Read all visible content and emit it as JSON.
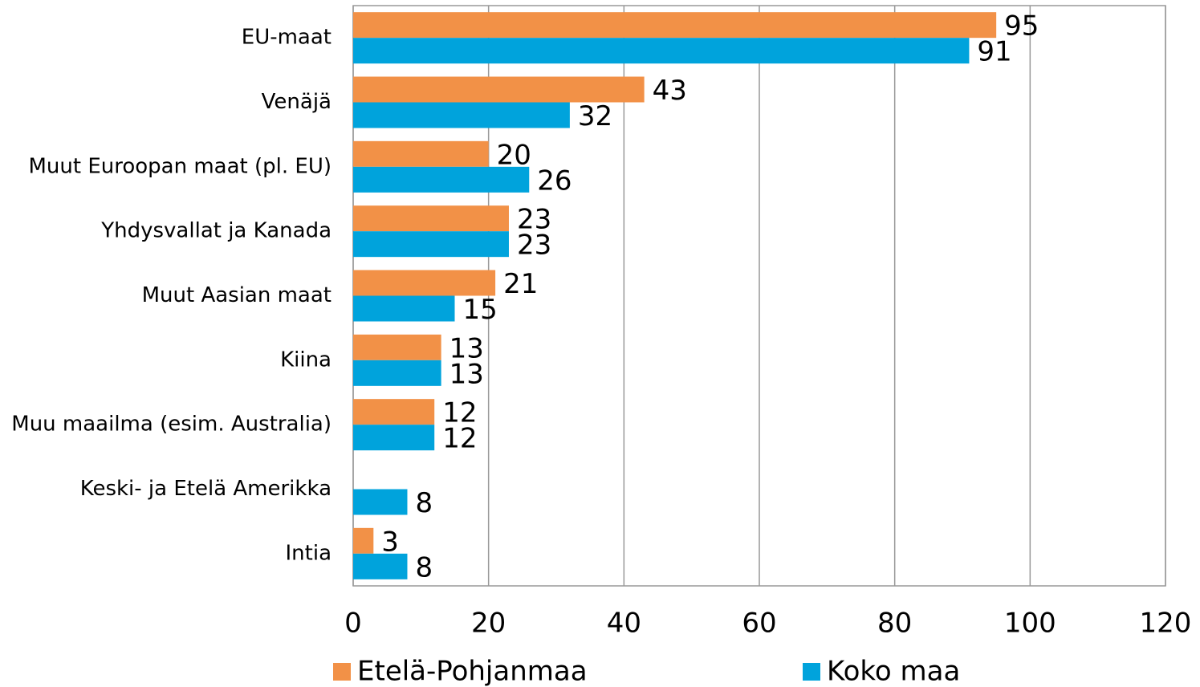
{
  "chart_data": {
    "type": "hbar",
    "categories": [
      "EU-maat",
      "Venäjä",
      "Muut Euroopan maat (pl. EU)",
      "Yhdysvallat ja Kanada",
      "Muut Aasian maat",
      "Kiina",
      "Muu maailma (esim. Australia)",
      "Keski- ja Etelä Amerikka",
      "Intia"
    ],
    "series": [
      {
        "name": "Etelä-Pohjanmaa",
        "color": "#f29147",
        "values": [
          95,
          43,
          20,
          23,
          21,
          13,
          12,
          null,
          3
        ]
      },
      {
        "name": "Koko maa",
        "color": "#00a3dc",
        "values": [
          91,
          32,
          26,
          23,
          15,
          13,
          12,
          8,
          8
        ]
      }
    ],
    "xlim": [
      0,
      120
    ],
    "xticks": [
      0,
      20,
      40,
      60,
      80,
      100,
      120
    ],
    "grid": true,
    "legend": "bottom"
  }
}
